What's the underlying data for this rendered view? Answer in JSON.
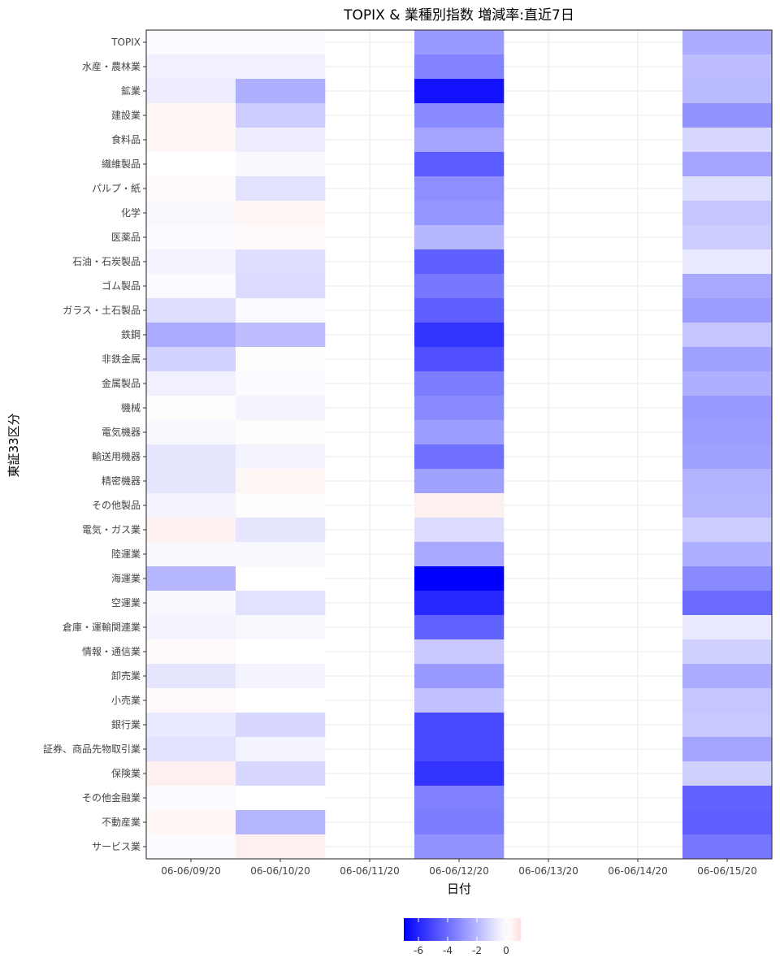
{
  "chart_data": {
    "type": "heatmap",
    "title": "TOPIX & 業種別指数 増減率:直近7日",
    "xlabel": "日付",
    "ylabel": "東証33区分",
    "x": [
      "06-06/09/20",
      "06-06/10/20",
      "06-06/11/20",
      "06-06/12/20",
      "06-06/13/20",
      "06-06/14/20",
      "06-06/15/20"
    ],
    "y": [
      "TOPIX",
      "水産・農林業",
      "鉱業",
      "建設業",
      "食料品",
      "繊維製品",
      "パルプ・紙",
      "化学",
      "医薬品",
      "石油・石炭製品",
      "ゴム製品",
      "ガラス・土石製品",
      "鉄鋼",
      "非鉄金属",
      "金属製品",
      "機械",
      "電気機器",
      "輸送用機器",
      "精密機器",
      "その他製品",
      "電気・ガス業",
      "陸運業",
      "海運業",
      "空運業",
      "倉庫・運輸関連業",
      "情報・通信業",
      "卸売業",
      "小売業",
      "銀行業",
      "証券、商品先物取引業",
      "保険業",
      "その他金融業",
      "不動産業",
      "サービス業"
    ],
    "values": [
      [
        -0.1,
        -0.1,
        null,
        -2.8,
        null,
        null,
        -2.3
      ],
      [
        -0.4,
        -0.4,
        null,
        -3.4,
        null,
        null,
        -1.8
      ],
      [
        -0.5,
        -2.2,
        null,
        -6.5,
        null,
        null,
        -1.9
      ],
      [
        0.3,
        -1.4,
        null,
        -3.2,
        null,
        null,
        -3.0
      ],
      [
        0.3,
        -0.5,
        null,
        -2.5,
        null,
        null,
        -1.1
      ],
      [
        0.0,
        -0.2,
        null,
        -4.5,
        null,
        null,
        -2.5
      ],
      [
        0.2,
        -0.8,
        null,
        -3.1,
        null,
        null,
        -0.9
      ],
      [
        -0.2,
        0.3,
        null,
        -2.9,
        null,
        null,
        -1.6
      ],
      [
        -0.1,
        0.2,
        null,
        -2.0,
        null,
        null,
        -1.4
      ],
      [
        -0.3,
        -0.9,
        null,
        -4.4,
        null,
        null,
        -0.6
      ],
      [
        -0.1,
        -1.0,
        null,
        -3.7,
        null,
        null,
        -2.4
      ],
      [
        -0.9,
        -0.1,
        null,
        -4.4,
        null,
        null,
        -2.7
      ],
      [
        -2.3,
        -1.8,
        null,
        -5.6,
        null,
        null,
        -1.6
      ],
      [
        -1.2,
        0.1,
        null,
        -4.8,
        null,
        null,
        -2.6
      ],
      [
        -0.4,
        -0.1,
        null,
        -3.6,
        null,
        null,
        -2.2
      ],
      [
        0.1,
        -0.3,
        null,
        -3.2,
        null,
        null,
        -2.8
      ],
      [
        -0.2,
        0.1,
        null,
        -2.7,
        null,
        null,
        -2.7
      ],
      [
        -0.7,
        -0.3,
        null,
        -3.9,
        null,
        null,
        -2.6
      ],
      [
        -0.7,
        0.3,
        null,
        -2.6,
        null,
        null,
        -2.1
      ],
      [
        -0.3,
        0.1,
        null,
        0.5,
        null,
        null,
        -2.0
      ],
      [
        0.5,
        -0.7,
        null,
        -1.0,
        null,
        null,
        -1.4
      ],
      [
        -0.2,
        -0.2,
        null,
        -2.4,
        null,
        null,
        -2.2
      ],
      [
        -2.0,
        0.0,
        null,
        -7.0,
        null,
        null,
        -3.2
      ],
      [
        -0.2,
        -0.8,
        null,
        -5.9,
        null,
        null,
        -4.1
      ],
      [
        -0.3,
        -0.2,
        null,
        -4.3,
        null,
        null,
        -0.6
      ],
      [
        0.2,
        0.0,
        null,
        -1.5,
        null,
        null,
        -1.3
      ],
      [
        -0.7,
        -0.3,
        null,
        -2.8,
        null,
        null,
        -2.3
      ],
      [
        0.2,
        0.0,
        null,
        -1.7,
        null,
        null,
        -1.6
      ],
      [
        -0.6,
        -1.1,
        null,
        -5.0,
        null,
        null,
        -1.5
      ],
      [
        -0.8,
        -0.3,
        null,
        -5.0,
        null,
        null,
        -2.5
      ],
      [
        0.5,
        -1.1,
        null,
        -5.6,
        null,
        null,
        -1.3
      ],
      [
        -0.1,
        0.0,
        null,
        -3.5,
        null,
        null,
        -4.3
      ],
      [
        0.3,
        -2.0,
        null,
        -3.6,
        null,
        null,
        -4.4
      ],
      [
        -0.1,
        0.5,
        null,
        -3.0,
        null,
        null,
        -3.7
      ]
    ],
    "color_scale": {
      "low": "#0000FF",
      "mid": "#FFFFFF",
      "high": "#FF0000",
      "range": [
        -7,
        1
      ]
    },
    "legend": {
      "position": "bottom",
      "ticks": [
        -6,
        -4,
        -2,
        0
      ]
    },
    "grid": true
  }
}
